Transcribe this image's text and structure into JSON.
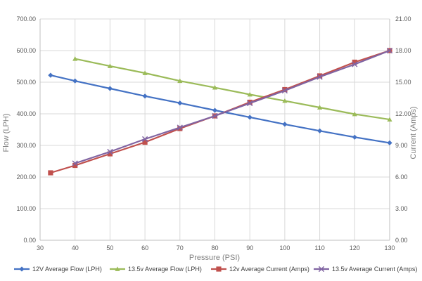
{
  "chart_data": {
    "type": "line",
    "xlabel": "Pressure (PSI)",
    "ylabel": "Flow (LPH)",
    "y2label": "Current (Amps)",
    "xlim": [
      30,
      130
    ],
    "xticks": [
      "30",
      "40",
      "50",
      "60",
      "70",
      "80",
      "90",
      "100",
      "110",
      "120",
      "130"
    ],
    "ylim": [
      0,
      700
    ],
    "yticks": [
      "0.00",
      "100.00",
      "200.00",
      "300.00",
      "400.00",
      "500.00",
      "600.00",
      "700.00"
    ],
    "y2lim": [
      0,
      21
    ],
    "y2ticks": [
      "0.00",
      "3.00",
      "6.00",
      "9.00",
      "12.00",
      "15.00",
      "18.00",
      "21.00"
    ],
    "grid": true,
    "legend_position": "bottom",
    "series": [
      {
        "name": "12V Average Flow (LPH)",
        "axis": "left",
        "color": "#4472c4",
        "marker": "diamond",
        "x": [
          33,
          40,
          50,
          60,
          70,
          80,
          90,
          100,
          110,
          120,
          130
        ],
        "values": [
          522,
          504,
          480,
          456,
          434,
          411,
          389,
          367,
          346,
          326,
          308
        ]
      },
      {
        "name": "13.5v Average Flow (LPH)",
        "axis": "left",
        "color": "#9bbb59",
        "marker": "triangle",
        "x": [
          40,
          50,
          60,
          70,
          80,
          90,
          100,
          110,
          120,
          130
        ],
        "values": [
          574,
          551,
          529,
          504,
          483,
          461,
          441,
          420,
          399,
          382
        ]
      },
      {
        "name": "12v Average Current (Amps)",
        "axis": "right",
        "color": "#c0504d",
        "marker": "square",
        "x": [
          33,
          40,
          50,
          60,
          70,
          80,
          90,
          100,
          110,
          120,
          130
        ],
        "values": [
          6.4,
          7.1,
          8.2,
          9.3,
          10.6,
          11.8,
          13.1,
          14.3,
          15.6,
          16.9,
          18.0
        ]
      },
      {
        "name": "13.5v Average Current (Amps)",
        "axis": "right",
        "color": "#8064a2",
        "marker": "x",
        "x": [
          40,
          50,
          60,
          70,
          80,
          90,
          100,
          110,
          120,
          130
        ],
        "values": [
          7.3,
          8.4,
          9.6,
          10.7,
          11.8,
          13.0,
          14.2,
          15.5,
          16.7,
          18.0
        ]
      }
    ]
  }
}
